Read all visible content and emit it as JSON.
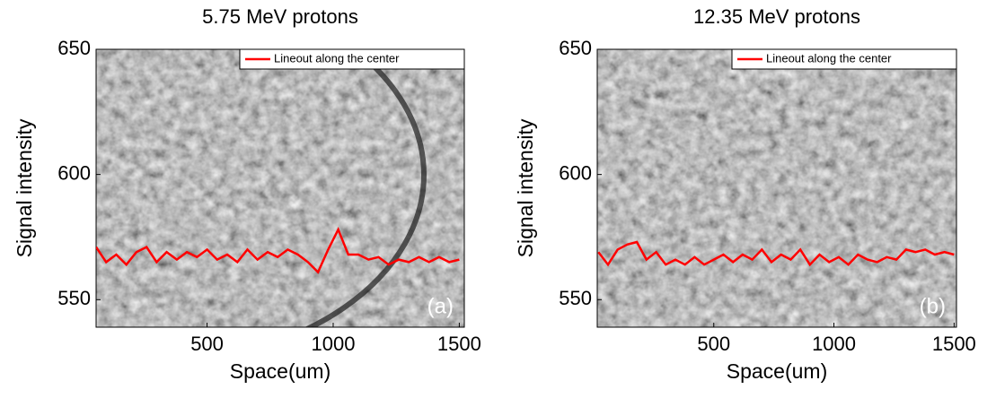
{
  "chart_data": [
    {
      "type": "line",
      "title": "5.75 MeV protons",
      "x_label": "Space(um)",
      "y_label": "Signal intensity",
      "annotation": "(a)",
      "legend": "upper right",
      "xlim": [
        60,
        1520
      ],
      "ylim": [
        539,
        650
      ],
      "xticks": [
        500,
        1000,
        1500
      ],
      "yticks": [
        550,
        600,
        650
      ],
      "x": [
        60,
        100,
        140,
        180,
        220,
        260,
        300,
        340,
        380,
        420,
        460,
        500,
        540,
        580,
        620,
        660,
        700,
        740,
        780,
        820,
        860,
        900,
        940,
        980,
        1020,
        1060,
        1100,
        1140,
        1180,
        1220,
        1260,
        1300,
        1340,
        1380,
        1420,
        1460,
        1500
      ],
      "series": [
        {
          "name": "Lineout along the center",
          "color": "#ff0000",
          "values": [
            571,
            565,
            568,
            564,
            569,
            571,
            565,
            569,
            566,
            569,
            567,
            570,
            566,
            568,
            565,
            570,
            566,
            569,
            567,
            570,
            568,
            565,
            561,
            570,
            578,
            568,
            568,
            566,
            567,
            564,
            566,
            565,
            567,
            565,
            567,
            565,
            566
          ]
        }
      ]
    },
    {
      "type": "line",
      "title": "12.35 MeV protons",
      "x_label": "Space(um)",
      "y_label": "Signal intensity",
      "annotation": "(b)",
      "legend": "upper right",
      "xlim": [
        15,
        1510
      ],
      "ylim": [
        539,
        650
      ],
      "xticks": [
        500,
        1000,
        1500
      ],
      "yticks": [
        550,
        600,
        650
      ],
      "x": [
        20,
        60,
        100,
        140,
        180,
        220,
        260,
        300,
        340,
        380,
        420,
        460,
        500,
        540,
        580,
        620,
        660,
        700,
        740,
        780,
        820,
        860,
        900,
        940,
        980,
        1020,
        1060,
        1100,
        1140,
        1180,
        1220,
        1260,
        1300,
        1340,
        1380,
        1420,
        1460,
        1500
      ],
      "series": [
        {
          "name": "Lineout along the center",
          "color": "#ff0000",
          "values": [
            569,
            564,
            570,
            572,
            573,
            566,
            569,
            564,
            566,
            564,
            567,
            564,
            566,
            568,
            565,
            568,
            566,
            570,
            565,
            568,
            566,
            570,
            564,
            568,
            565,
            567,
            564,
            568,
            566,
            565,
            567,
            566,
            570,
            569,
            570,
            568,
            569,
            568
          ]
        }
      ]
    }
  ]
}
